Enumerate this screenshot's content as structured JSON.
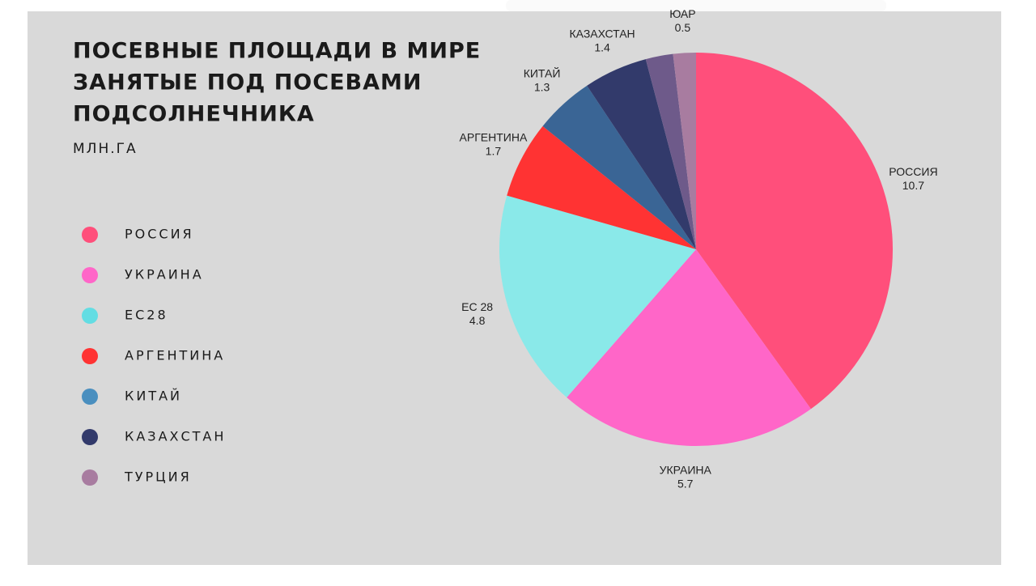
{
  "chart_data": {
    "type": "pie",
    "title": [
      "ПОСЕВНЫЕ ПЛОЩАДИ В МИРЕ",
      "ЗАНЯТЫЕ ПОД ПОСЕВАМИ",
      "ПОДСОЛНЕЧНИКА"
    ],
    "subtitle": "МЛН.ГА",
    "categories": [
      "РОССИЯ",
      "УКРАИНА",
      "ЕС 28",
      "АРГЕНТИНА",
      "КИТАЙ",
      "КАЗАХСТАН",
      null,
      "ЮАР"
    ],
    "values": [
      10.7,
      5.7,
      4.8,
      1.7,
      1.3,
      1.4,
      0.6,
      0.5
    ],
    "value_labels": [
      "10.7",
      "5.7",
      "4.8",
      "1.7",
      "1.3",
      "1.4",
      null,
      "0.5"
    ],
    "colors": [
      "#ff4f7b",
      "#ff66c8",
      "#8ae9e9",
      "#ff3333",
      "#3a6595",
      "#323a6b",
      "#6e5a8a",
      "#a87ca0"
    ],
    "legend": [
      {
        "name": "РОССИЯ",
        "color": "#ff4f7b"
      },
      {
        "name": "УКРАИНА",
        "color": "#ff66c8"
      },
      {
        "name": "ЕС28",
        "color": "#63dde3"
      },
      {
        "name": "АРГЕНТИНА",
        "color": "#ff3333"
      },
      {
        "name": "КИТАЙ",
        "color": "#4a8fbf"
      },
      {
        "name": "КАЗАХСТАН",
        "color": "#323a6b"
      },
      {
        "name": "ТУРЦИЯ",
        "color": "#a87ca0"
      }
    ]
  }
}
